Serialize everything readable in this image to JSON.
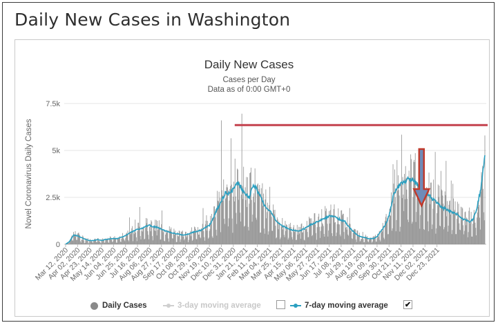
{
  "page": {
    "title": "Daily New Cases in Washington"
  },
  "chart_data": {
    "type": "bar",
    "title": "Daily New Cases",
    "subtitle": "Cases per Day",
    "subtitle2": "Data as of 0:00 GMT+0",
    "ylabel": "Novel Coronavirus Daily Cases",
    "ylim": [
      0,
      7500
    ],
    "yticks": [
      0,
      2500,
      5000,
      7500
    ],
    "ytick_labels": [
      "0",
      "2.5k",
      "5k",
      "7.5k"
    ],
    "x_tick_labels": [
      "Mar 12, 2020",
      "Apr 02, 2020",
      "Apr 23, 2020",
      "May 14, 2020",
      "Jun 04, 2020",
      "Jun 25, 2020",
      "Jul 16, 2020",
      "Aug 06, 2020",
      "Aug 27, 2020",
      "Sep 17, 2020",
      "Oct 08, 2020",
      "Oct 29, 2020",
      "Nov 19, 2020",
      "Dec 10, 2020",
      "Dec 31, 2020",
      "Jan 21, 2021",
      "Feb 11, 2021",
      "Mar 04, 2021",
      "Mar 25, 2021",
      "Apr 15, 2021",
      "May 06, 2021",
      "May 27, 2021",
      "Jun 17, 2021",
      "Jul 08, 2021",
      "Jul 29, 2021",
      "Aug 19, 2021",
      "Sep 09, 2021",
      "Sep 30, 2021",
      "Oct 21, 2021",
      "Nov 11, 2021",
      "Dec 02, 2021",
      "Dec 23, 2021"
    ],
    "week_series": {
      "name": "7-day moving average (weekly samples)",
      "values": [
        0,
        150,
        500,
        450,
        350,
        250,
        200,
        200,
        250,
        200,
        250,
        280,
        300,
        300,
        380,
        450,
        600,
        700,
        800,
        850,
        950,
        1000,
        950,
        900,
        800,
        720,
        650,
        600,
        550,
        500,
        520,
        550,
        650,
        700,
        750,
        900,
        1000,
        1400,
        1900,
        2300,
        2700,
        2700,
        2900,
        3300,
        3000,
        2700,
        2500,
        3100,
        2900,
        2400,
        2000,
        1800,
        1500,
        1200,
        1000,
        900,
        800,
        750,
        700,
        750,
        850,
        1000,
        1100,
        1200,
        1300,
        1400,
        1500,
        1500,
        1400,
        1300,
        1200,
        900,
        700,
        500,
        400,
        350,
        300,
        300,
        400,
        700,
        1000,
        1500,
        2500,
        3000,
        3200,
        3300,
        3500,
        3400,
        3200,
        3000,
        2800,
        2600,
        2400,
        2200,
        2000,
        1900,
        1800,
        1700,
        1600,
        1400,
        1300,
        1200,
        1300,
        1900,
        3000,
        4800
      ]
    },
    "series": [
      {
        "name": "Daily Cases",
        "color": "#8a8a8a",
        "visible": true
      },
      {
        "name": "3-day moving average",
        "color": "#cccccc",
        "visible": false
      },
      {
        "name": "7-day moving average",
        "color": "#2a9fc0",
        "visible": true
      }
    ],
    "annotations": [
      {
        "type": "horizontal-line",
        "value": 6350,
        "color": "#c4424e",
        "from_label": "Dec 31, 2020",
        "to": "end"
      },
      {
        "type": "down-arrow",
        "at_label": "Dec 02, 2021",
        "color": "#c0392b",
        "fill": "#6f8bb8"
      }
    ]
  },
  "legend": {
    "items": [
      {
        "label": "Daily Cases",
        "checked": null
      },
      {
        "label": "3-day moving average",
        "checked": false
      },
      {
        "label": "7-day moving average",
        "checked": true
      }
    ],
    "check_mark": "✔"
  }
}
